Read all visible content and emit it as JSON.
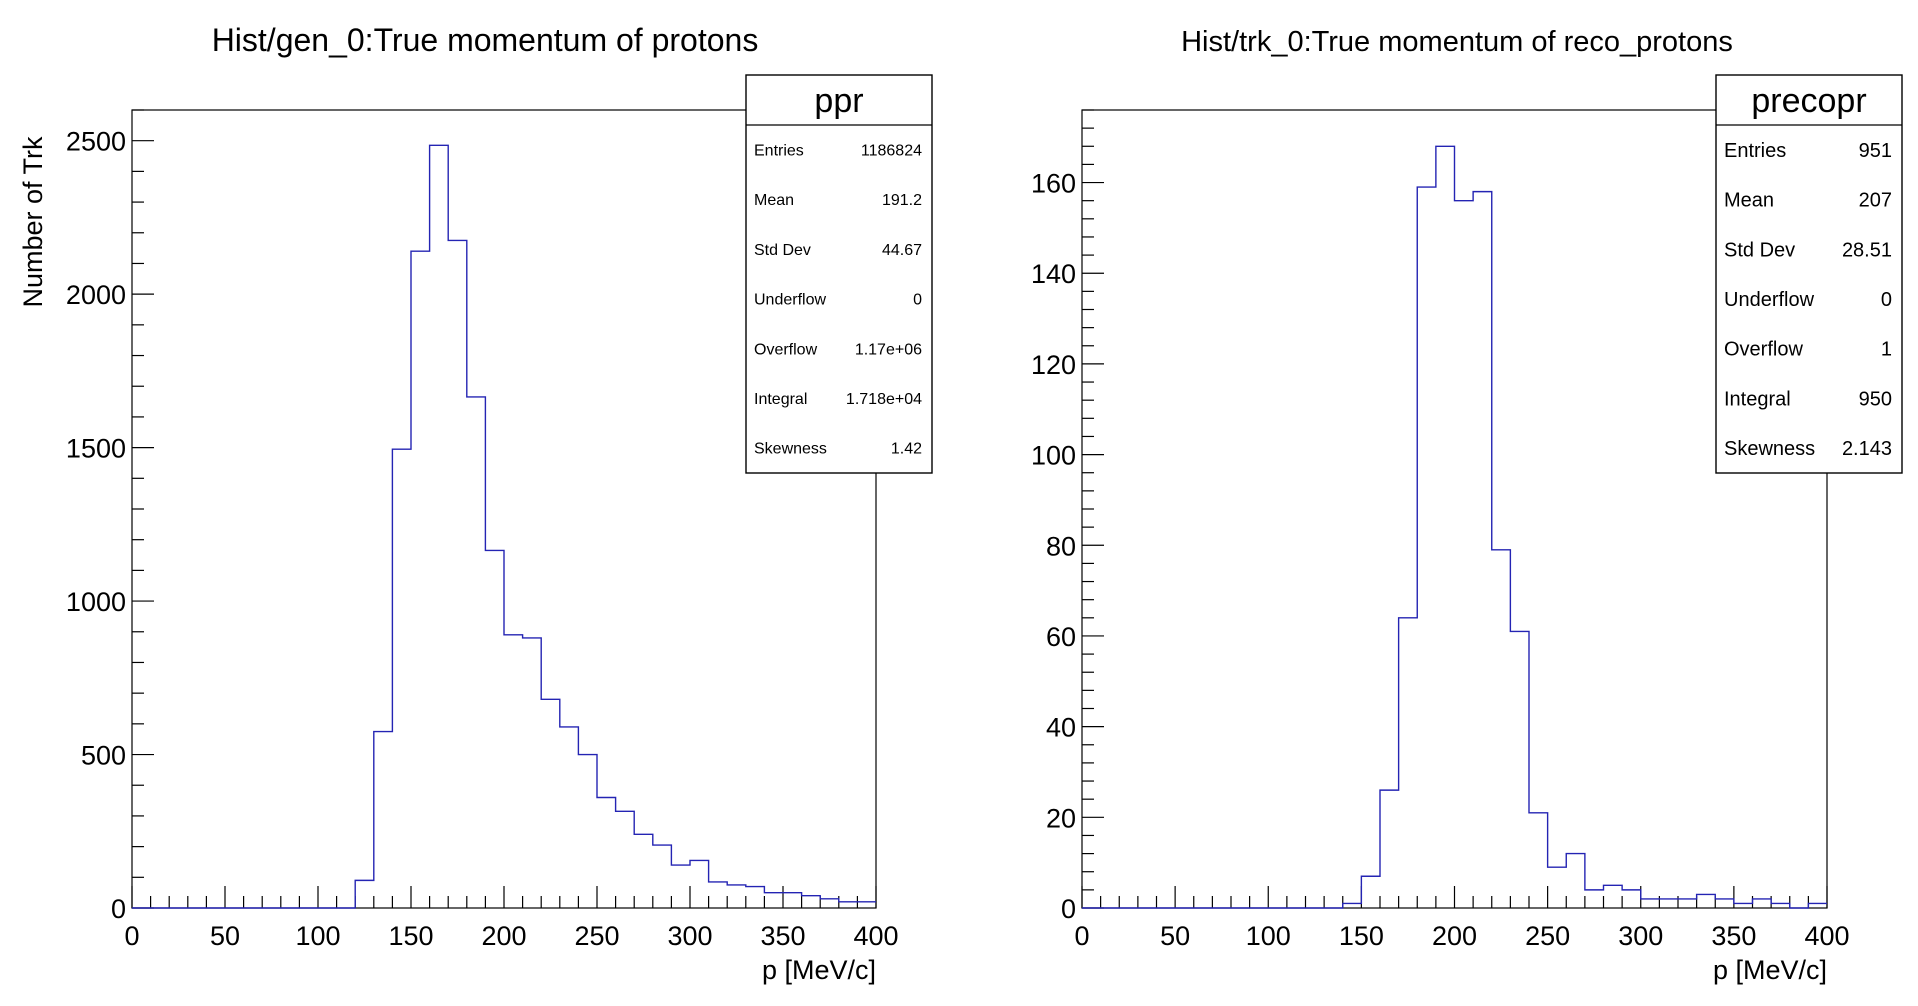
{
  "colors": {
    "histogram_line": "#2424b3",
    "axis": "#000000",
    "background": "#ffffff"
  },
  "chart_data": [
    {
      "type": "histogram",
      "title": "Hist/gen_0:True momentum of protons",
      "xlabel": "p [MeV/c]",
      "ylabel": "Number of Trk",
      "xlim": [
        0,
        400
      ],
      "ylim": [
        0,
        2600
      ],
      "x_ticks": [
        0,
        50,
        100,
        150,
        200,
        250,
        300,
        350,
        400
      ],
      "y_ticks": [
        0,
        500,
        1000,
        1500,
        2000,
        2500
      ],
      "bin_width": 10,
      "bin_edges_start": 0,
      "values": [
        0,
        0,
        0,
        0,
        0,
        0,
        0,
        0,
        0,
        0,
        0,
        0,
        90,
        575,
        1495,
        2140,
        2485,
        2175,
        1665,
        1165,
        890,
        880,
        680,
        590,
        500,
        360,
        315,
        240,
        205,
        140,
        155,
        85,
        75,
        70,
        50,
        50,
        40,
        30,
        20,
        20
      ],
      "stats": {
        "name": "ppr",
        "rows": [
          {
            "label": "Entries",
            "value": "1186824"
          },
          {
            "label": "Mean",
            "value": "191.2"
          },
          {
            "label": "Std Dev",
            "value": "44.67"
          },
          {
            "label": "Underflow",
            "value": "0"
          },
          {
            "label": "Overflow",
            "value": "1.17e+06"
          },
          {
            "label": "Integral",
            "value": "1.718e+04"
          },
          {
            "label": "Skewness",
            "value": "1.42"
          }
        ]
      }
    },
    {
      "type": "histogram",
      "title": "Hist/trk_0:True momentum of reco_protons",
      "xlabel": "p [MeV/c]",
      "ylabel": "",
      "xlim": [
        0,
        400
      ],
      "ylim": [
        0,
        176
      ],
      "x_ticks": [
        0,
        50,
        100,
        150,
        200,
        250,
        300,
        350,
        400
      ],
      "y_ticks": [
        0,
        20,
        40,
        60,
        80,
        100,
        120,
        140,
        160
      ],
      "bin_width": 10,
      "bin_edges_start": 0,
      "values": [
        0,
        0,
        0,
        0,
        0,
        0,
        0,
        0,
        0,
        0,
        0,
        0,
        0,
        0,
        1,
        7,
        26,
        64,
        159,
        168,
        156,
        158,
        79,
        61,
        21,
        9,
        12,
        4,
        5,
        4,
        2,
        2,
        2,
        3,
        2,
        1,
        2,
        1,
        0,
        1
      ],
      "stats": {
        "name": "precopr",
        "rows": [
          {
            "label": "Entries",
            "value": "951"
          },
          {
            "label": "Mean",
            "value": "207"
          },
          {
            "label": "Std Dev",
            "value": "28.51"
          },
          {
            "label": "Underflow",
            "value": "0"
          },
          {
            "label": "Overflow",
            "value": "1"
          },
          {
            "label": "Integral",
            "value": "950"
          },
          {
            "label": "Skewness",
            "value": "2.143"
          }
        ]
      }
    }
  ]
}
